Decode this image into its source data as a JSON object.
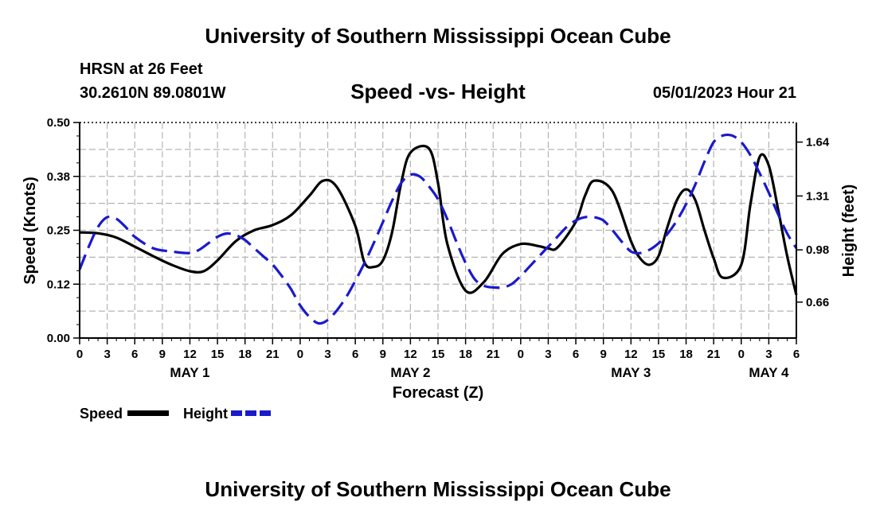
{
  "page": {
    "title_top": "University of Southern Mississippi Ocean Cube",
    "title_bottom": "University of Southern Mississippi Ocean Cube",
    "station": "HRSN at 26 Feet",
    "coords": "30.2610N  89.0801W",
    "chart_title": "Speed -vs- Height",
    "datetime": "05/01/2023 Hour 21"
  },
  "legend": {
    "speed_label": "Speed",
    "height_label": "Height",
    "speed_color": "#000000",
    "height_color": "#1a1acc"
  },
  "chart_data": {
    "type": "line",
    "title": "Speed -vs- Height",
    "xlabel": "Forecast (Z)",
    "ylabel": "Speed (Knots)",
    "y2label": "Height (feet)",
    "x_hours_range": [
      0,
      78
    ],
    "ylim": [
      0,
      0.5
    ],
    "y2lim": [
      0.44,
      1.76
    ],
    "y_ticks": [
      "0.00",
      "0.12",
      "0.25",
      "0.38",
      "0.50"
    ],
    "y_tick_values": [
      0,
      0.125,
      0.25,
      0.375,
      0.5
    ],
    "y2_ticks": [
      "0.66",
      "0.98",
      "1.31",
      "1.64"
    ],
    "y2_tick_values": [
      0.66,
      0.98,
      1.31,
      1.64
    ],
    "x_tick_labels": [
      "0",
      "3",
      "6",
      "9",
      "12",
      "15",
      "18",
      "21",
      "0",
      "3",
      "6",
      "9",
      "12",
      "15",
      "18",
      "21",
      "0",
      "3",
      "6",
      "9",
      "12",
      "15",
      "18",
      "21",
      "0",
      "3",
      "6"
    ],
    "day_labels": [
      {
        "label": "MAY 1",
        "hour": 12
      },
      {
        "label": "MAY 2",
        "hour": 36
      },
      {
        "label": "MAY 3",
        "hour": 60
      },
      {
        "label": "MAY 4",
        "hour": 75
      }
    ],
    "series": [
      {
        "name": "Speed",
        "axis": "left",
        "color": "#000000",
        "style": "solid",
        "x": [
          0,
          2,
          4,
          6,
          8,
          10,
          12,
          13.5,
          15,
          17,
          19,
          21,
          23,
          25,
          26.5,
          28,
          30,
          31,
          32,
          33,
          34,
          35,
          36,
          38,
          39,
          40,
          42,
          44,
          46,
          48,
          50,
          51,
          52,
          54,
          55,
          56,
          58,
          60,
          61,
          62,
          63,
          64,
          65,
          66,
          67,
          68,
          69,
          70,
          72,
          73,
          74,
          75,
          76,
          77,
          78
        ],
        "values": [
          0.245,
          0.243,
          0.233,
          0.212,
          0.19,
          0.17,
          0.155,
          0.155,
          0.18,
          0.225,
          0.25,
          0.262,
          0.285,
          0.33,
          0.365,
          0.35,
          0.26,
          0.175,
          0.165,
          0.18,
          0.245,
          0.36,
          0.43,
          0.44,
          0.36,
          0.22,
          0.11,
          0.13,
          0.195,
          0.218,
          0.213,
          0.208,
          0.21,
          0.27,
          0.33,
          0.365,
          0.34,
          0.225,
          0.185,
          0.17,
          0.19,
          0.26,
          0.32,
          0.345,
          0.32,
          0.25,
          0.185,
          0.14,
          0.17,
          0.31,
          0.42,
          0.4,
          0.3,
          0.19,
          0.1
        ]
      },
      {
        "name": "Height",
        "axis": "right",
        "color": "#1a1acc",
        "style": "dashed",
        "x": [
          0,
          1,
          2,
          3,
          4,
          5,
          6,
          8,
          10,
          12,
          13,
          14,
          15,
          16,
          17,
          18,
          19,
          20,
          21,
          22,
          23,
          24,
          25,
          26,
          27,
          28,
          29,
          30,
          31,
          32,
          33,
          34,
          35,
          36,
          37,
          38,
          39,
          40,
          41,
          42,
          43,
          44,
          45,
          46,
          47,
          48,
          49,
          50,
          51,
          52,
          53,
          54,
          55,
          56,
          57,
          58,
          59,
          60,
          61,
          62,
          63,
          64,
          65,
          66,
          67,
          68,
          69,
          70,
          71,
          72,
          73,
          74,
          75,
          76,
          77,
          78
        ],
        "values": [
          0.86,
          1.0,
          1.12,
          1.18,
          1.17,
          1.12,
          1.06,
          0.99,
          0.97,
          0.96,
          0.98,
          1.02,
          1.06,
          1.08,
          1.07,
          1.04,
          0.99,
          0.94,
          0.89,
          0.82,
          0.74,
          0.64,
          0.57,
          0.53,
          0.55,
          0.61,
          0.69,
          0.79,
          0.9,
          1.02,
          1.15,
          1.28,
          1.39,
          1.44,
          1.43,
          1.37,
          1.29,
          1.17,
          1.03,
          0.9,
          0.8,
          0.76,
          0.75,
          0.75,
          0.77,
          0.82,
          0.88,
          0.94,
          1.0,
          1.06,
          1.12,
          1.16,
          1.18,
          1.18,
          1.16,
          1.1,
          1.03,
          0.97,
          0.96,
          0.98,
          1.02,
          1.08,
          1.16,
          1.26,
          1.38,
          1.52,
          1.64,
          1.68,
          1.68,
          1.64,
          1.56,
          1.45,
          1.33,
          1.2,
          1.08,
          0.99
        ]
      }
    ],
    "grid": true,
    "legend_position": "bottom-left"
  }
}
